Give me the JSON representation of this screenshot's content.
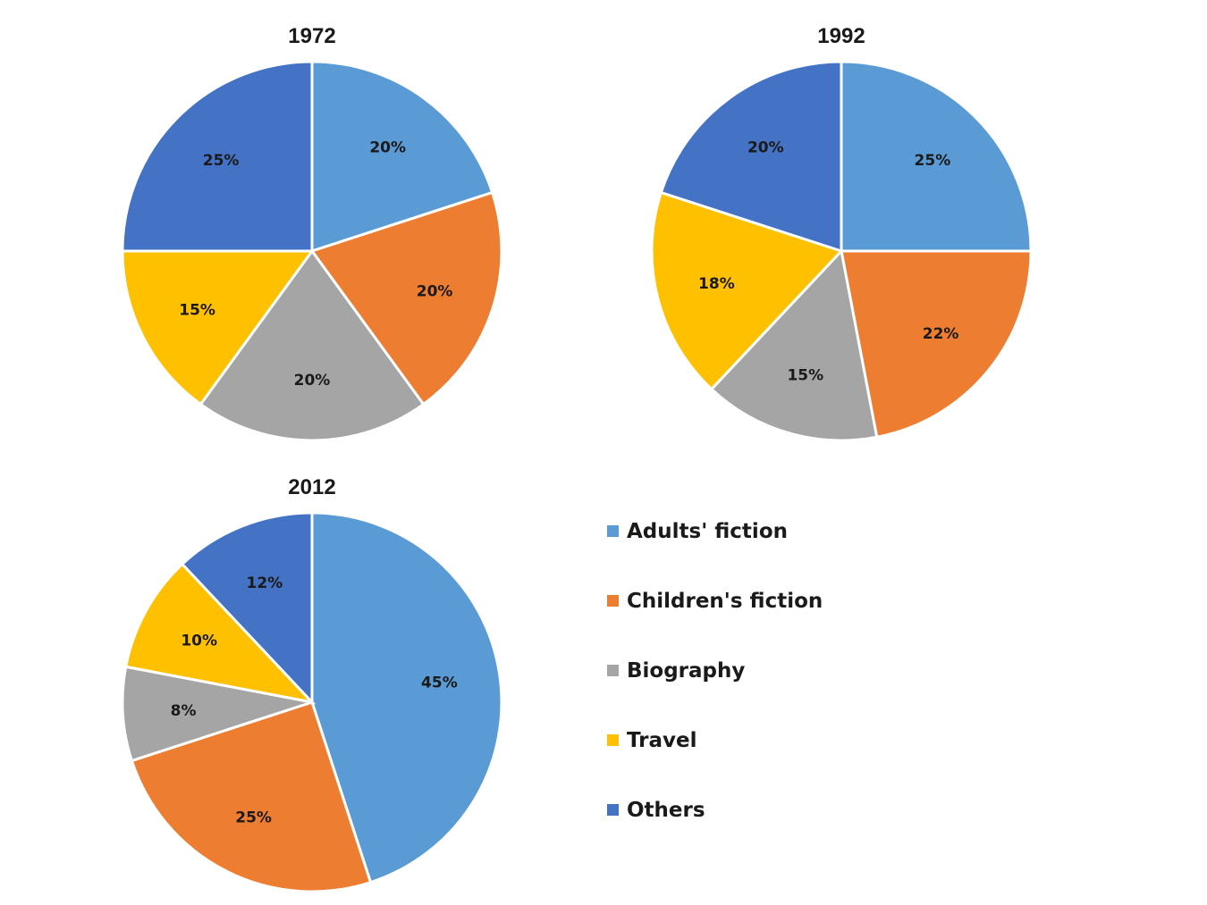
{
  "chart_data": [
    {
      "type": "pie",
      "title": "1972",
      "categories": [
        "Adults' fiction",
        "Children's fiction",
        "Biography",
        "Travel",
        "Others"
      ],
      "values": [
        20,
        20,
        20,
        15,
        25
      ],
      "labels": [
        "20%",
        "20%",
        "20%",
        "15%",
        "25%"
      ]
    },
    {
      "type": "pie",
      "title": "1992",
      "categories": [
        "Adults' fiction",
        "Children's fiction",
        "Biography",
        "Travel",
        "Others"
      ],
      "values": [
        25,
        22,
        15,
        18,
        20
      ],
      "labels": [
        "25%",
        "22%",
        "15%",
        "18%",
        "20%"
      ]
    },
    {
      "type": "pie",
      "title": "2012",
      "categories": [
        "Adults' fiction",
        "Children's fiction",
        "Biography",
        "Travel",
        "Others"
      ],
      "values": [
        45,
        25,
        8,
        10,
        12
      ],
      "labels": [
        "45%",
        "25%",
        "8%",
        "10%",
        "12%"
      ]
    }
  ],
  "legend": {
    "placement": "bottom-right",
    "items": [
      {
        "label": "Adults' fiction",
        "color": "#5B9BD5"
      },
      {
        "label": "Children's fiction",
        "color": "#ED7D31"
      },
      {
        "label": "Biography",
        "color": "#A5A5A5"
      },
      {
        "label": "Travel",
        "color": "#FFC000"
      },
      {
        "label": "Others",
        "color": "#4472C4"
      }
    ]
  }
}
